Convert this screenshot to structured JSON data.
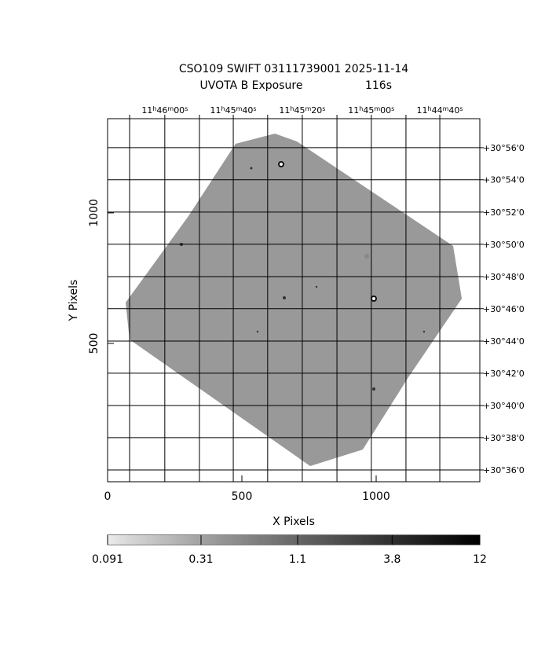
{
  "chart_data": {
    "type": "image",
    "title": "CSO109 SWIFT 03111739001 2025-11-14",
    "subtitle": "UVOTA B Exposure",
    "exposure": "116s",
    "xlabel": "X Pixels",
    "ylabel": "Y Pixels",
    "xlim": [
      0,
      1386
    ],
    "ylim": [
      -30,
      1361
    ],
    "xticks": [
      0,
      500,
      1000
    ],
    "yticks": [
      500,
      1000
    ],
    "x2ticks": [
      {
        "value": 213,
        "label": "11h46m00s"
      },
      {
        "value": 468,
        "label": "11h45m40s"
      },
      {
        "value": 725,
        "label": "11h45m20s"
      },
      {
        "value": 982,
        "label": "11h45m00s"
      },
      {
        "value": 1237,
        "label": "11h44m40s"
      }
    ],
    "x2minor": [
      82,
      342,
      596,
      854,
      1111
    ],
    "y2ticks": [
      {
        "value": 1250,
        "label": "+30°56'0"
      },
      {
        "value": 1127,
        "label": "+30°54'0"
      },
      {
        "value": 1003,
        "label": "+30°52'0"
      },
      {
        "value": 880,
        "label": "+30°50'0"
      },
      {
        "value": 756,
        "label": "+30°48'0"
      },
      {
        "value": 633,
        "label": "+30°46'0"
      },
      {
        "value": 509,
        "label": "+30°44'0"
      },
      {
        "value": 386,
        "label": "+30°42'0"
      },
      {
        "value": 262,
        "label": "+30°40'0"
      },
      {
        "value": 139,
        "label": "+30°38'0"
      },
      {
        "value": 15,
        "label": "+30°36'0"
      }
    ],
    "grid": true,
    "colorbar": {
      "lim": [
        0.091,
        12
      ],
      "ticks": [
        0.091,
        0.31,
        1.1,
        3.8,
        12
      ],
      "log": true
    }
  }
}
